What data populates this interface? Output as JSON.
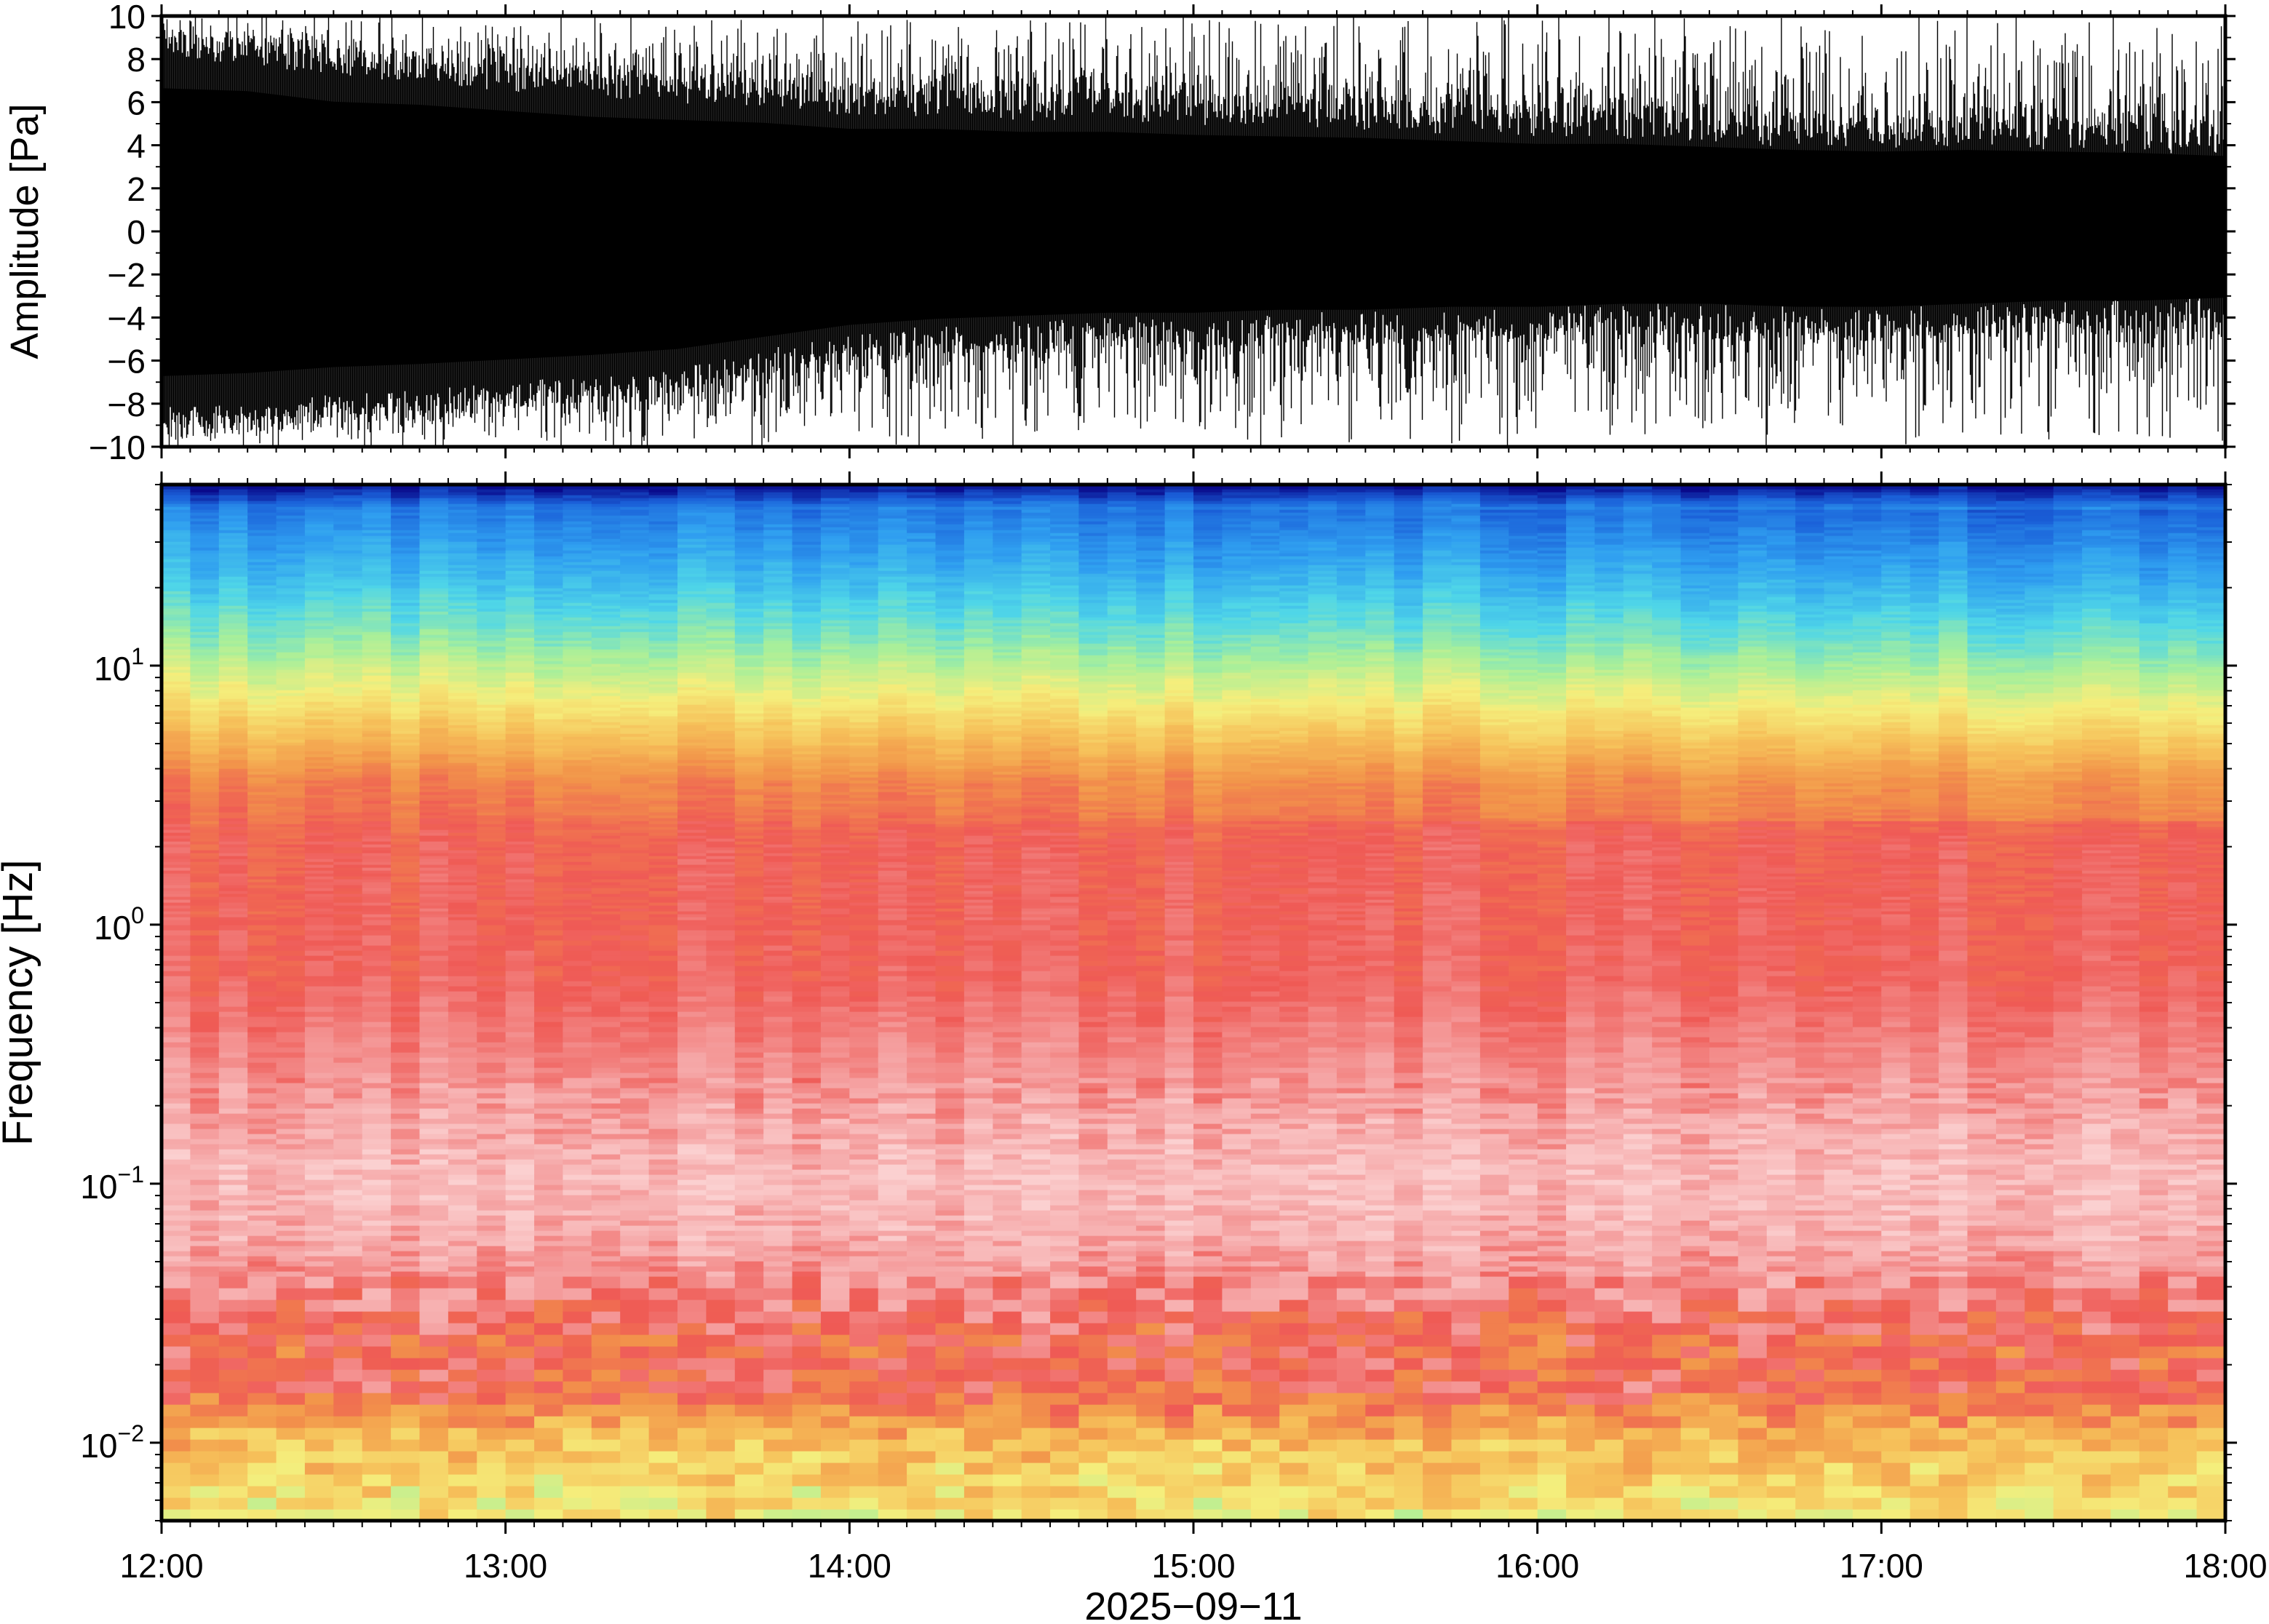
{
  "chart_data": [
    {
      "type": "line",
      "panel": "waveform",
      "ylabel": "Amplitude [Pa]",
      "ylim": [
        -10,
        10
      ],
      "yticks": [
        -10,
        -8,
        -6,
        -4,
        -2,
        0,
        2,
        4,
        6,
        8,
        10
      ],
      "ytick_labels": [
        "−10",
        "−8",
        "−6",
        "−4",
        "−2",
        "0",
        "2",
        "4",
        "6",
        "8",
        "10"
      ],
      "xlim": [
        "12:00",
        "18:00"
      ],
      "series": [
        {
          "envelope_hours": [
            12.0,
            12.25,
            12.5,
            12.75,
            13.0,
            13.25,
            13.5,
            13.75,
            14.0,
            14.25,
            14.5,
            14.75,
            15.0,
            15.25,
            15.5,
            15.75,
            16.0,
            16.25,
            16.5,
            16.75,
            17.0,
            17.25,
            17.5,
            17.75,
            18.0
          ],
          "positive_envelope_pa": [
            9.5,
            9.3,
            8.6,
            8.4,
            8.0,
            7.6,
            7.4,
            7.2,
            6.8,
            6.8,
            6.6,
            6.6,
            6.4,
            6.3,
            6.2,
            6.0,
            5.8,
            5.8,
            5.6,
            5.4,
            5.3,
            5.4,
            5.3,
            5.2,
            5.0
          ],
          "negative_envelope_pa": [
            -9.6,
            -9.4,
            -9.0,
            -8.8,
            -8.5,
            -8.2,
            -7.8,
            -7.0,
            -6.2,
            -5.8,
            -5.6,
            -5.4,
            -5.4,
            -5.2,
            -5.2,
            -5.0,
            -5.0,
            -4.8,
            -4.8,
            -5.0,
            -5.0,
            -4.8,
            -4.6,
            -4.6,
            -4.4
          ]
        }
      ]
    },
    {
      "type": "heatmap",
      "panel": "spectrogram",
      "ylabel": "Frequency [Hz]",
      "xlabel": "2025−09−11",
      "yscale": "log",
      "ylim_hz": [
        0.005,
        50
      ],
      "yticks_hz": [
        0.01,
        0.1,
        1,
        10
      ],
      "ytick_labels": [
        {
          "base": "10",
          "exp": "−2"
        },
        {
          "base": "10",
          "exp": "−1"
        },
        {
          "base": "10",
          "exp": "0"
        },
        {
          "base": "10",
          "exp": "1"
        }
      ],
      "xticks": [
        "12:00",
        "13:00",
        "14:00",
        "15:00",
        "16:00",
        "17:00",
        "18:00"
      ],
      "colormap": "rainbow (blue = low power, red = high power)",
      "colormap_stops": [
        "#09098a",
        "#1a5fd8",
        "#2f9ef0",
        "#4fd6e8",
        "#a8ef9a",
        "#f5ee7c",
        "#f6c15a",
        "#f2954a",
        "#ef5a55",
        "#f5a3a3",
        "#fbd0d0"
      ],
      "band_profile_log10_hz": [
        {
          "log10_f": -2.3,
          "level": 0.52
        },
        {
          "log10_f": -2.0,
          "level": 0.62
        },
        {
          "log10_f": -1.8,
          "level": 0.8
        },
        {
          "log10_f": -1.65,
          "level": 0.78
        },
        {
          "log10_f": -1.5,
          "level": 0.84
        },
        {
          "log10_f": -1.2,
          "level": 0.93
        },
        {
          "log10_f": -1.0,
          "level": 0.96
        },
        {
          "log10_f": -0.6,
          "level": 0.88
        },
        {
          "log10_f": -0.2,
          "level": 0.81
        },
        {
          "log10_f": 0.3,
          "level": 0.8
        },
        {
          "log10_f": 0.55,
          "level": 0.74
        },
        {
          "log10_f": 0.75,
          "level": 0.6
        },
        {
          "log10_f": 0.9,
          "level": 0.5
        },
        {
          "log10_f": 1.1,
          "level": 0.38
        },
        {
          "log10_f": 1.35,
          "level": 0.26
        },
        {
          "log10_f": 1.6,
          "level": 0.16
        },
        {
          "log10_f": 1.68,
          "level": 0.02
        }
      ]
    }
  ]
}
